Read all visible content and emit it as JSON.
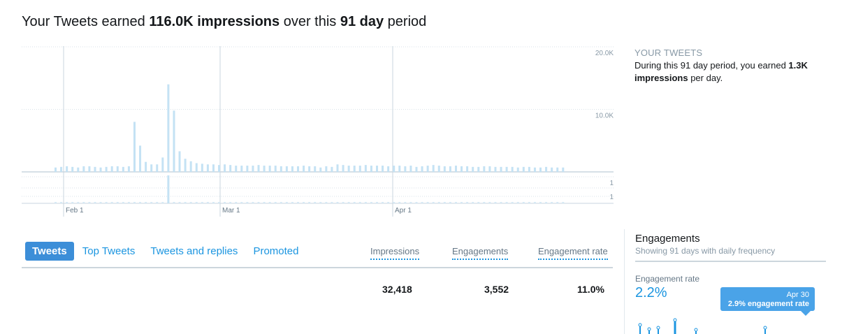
{
  "headline": {
    "prefix": "Your Tweets earned ",
    "impressions": "116.0K impressions",
    "middle": " over this ",
    "period": "91 day",
    "suffix": " period"
  },
  "side": {
    "caption": "YOUR TWEETS",
    "text_prefix": "During this 91 day period, you earned ",
    "text_bold": "1.3K impressions",
    "text_suffix": " per day."
  },
  "tabs": [
    {
      "label": "Tweets",
      "active": true
    },
    {
      "label": "Top Tweets",
      "active": false
    },
    {
      "label": "Tweets and replies",
      "active": false
    },
    {
      "label": "Promoted",
      "active": false
    }
  ],
  "table": {
    "columns": [
      "Impressions",
      "Engagements",
      "Engagement rate"
    ],
    "values": [
      "32,418",
      "3,552",
      "11.0%"
    ]
  },
  "engagements": {
    "title": "Engagements",
    "subtitle": "Showing 91 days with daily frequency",
    "rate_label": "Engagement rate",
    "rate_value": "2.2%",
    "tooltip_date": "Apr 30",
    "tooltip_value": "2.9% engagement rate",
    "accent": "#1b95e0"
  },
  "chart_data": {
    "type": "bar",
    "ylim": [
      0,
      20000
    ],
    "yticks": [
      "20.0K",
      "10.0K"
    ],
    "lower_ticks": [
      "1",
      "1"
    ],
    "xticks": [
      "Feb 1",
      "Mar 1",
      "Apr 1"
    ],
    "bar_color": "#c4e2f4",
    "values": [
      700,
      800,
      900,
      800,
      700,
      900,
      900,
      800,
      700,
      800,
      900,
      900,
      800,
      900,
      8000,
      4200,
      1600,
      1200,
      1200,
      2300,
      14000,
      9800,
      3300,
      2100,
      1700,
      1400,
      1300,
      1200,
      1200,
      1100,
      1200,
      1100,
      1000,
      1000,
      1000,
      1000,
      1100,
      1000,
      1000,
      1000,
      900,
      900,
      900,
      900,
      1000,
      900,
      900,
      700,
      900,
      800,
      1200,
      1100,
      1000,
      1000,
      1000,
      1100,
      1000,
      1000,
      1000,
      900,
      1000,
      1000,
      900,
      1000,
      800,
      900,
      1000,
      1100,
      1000,
      900,
      900,
      1000,
      900,
      900,
      800,
      800,
      900,
      900,
      800,
      800,
      800,
      800,
      700,
      800,
      800,
      700,
      700,
      800,
      700,
      700,
      700
    ]
  }
}
